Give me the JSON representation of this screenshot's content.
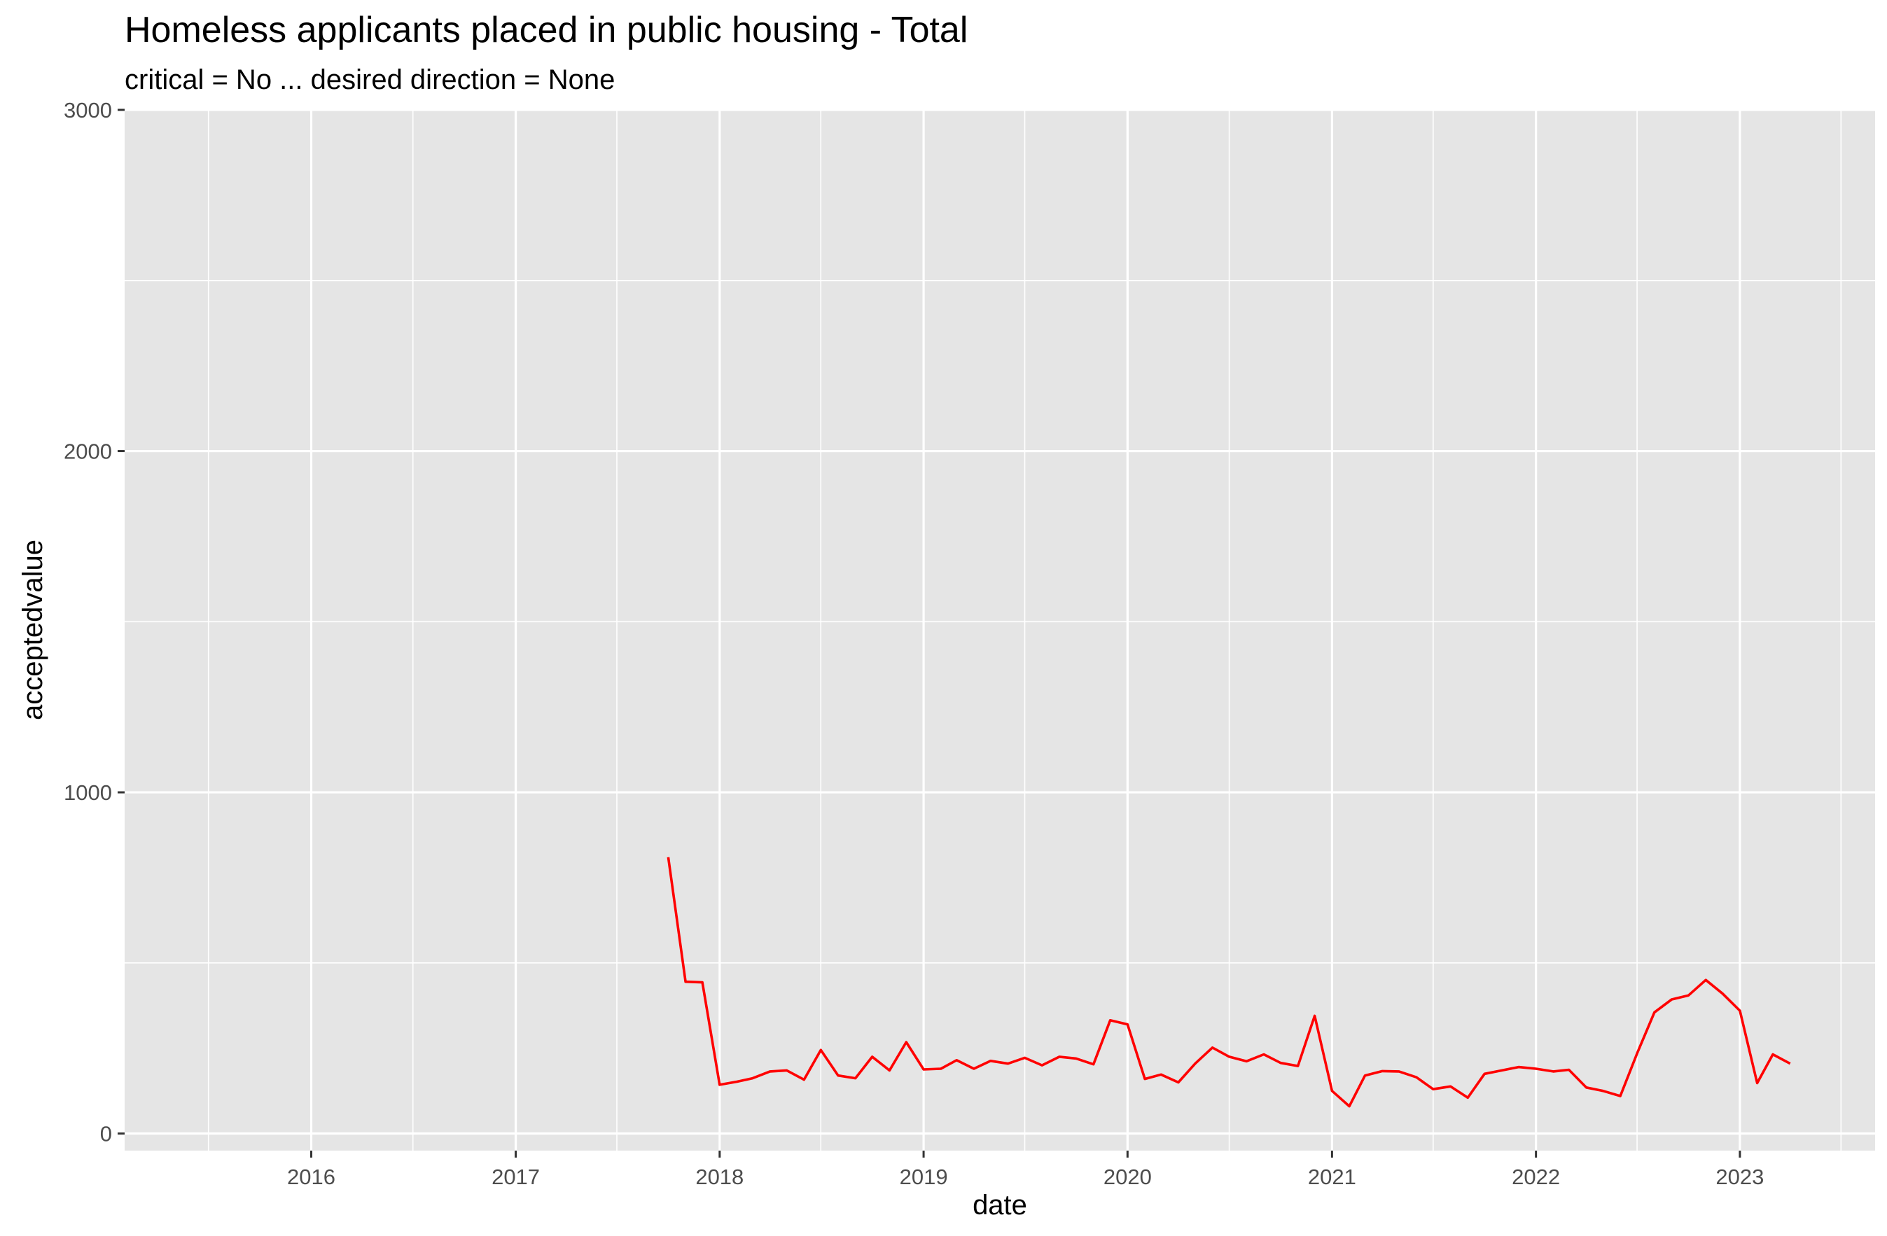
{
  "chart_data": {
    "type": "line",
    "title": "Homeless applicants placed in public housing - Total",
    "subtitle": "critical = No ... desired direction = None",
    "xlabel": "date",
    "ylabel": "acceptedvalue",
    "xlim": [
      "2015-02-01",
      "2023-08-31"
    ],
    "ylim": [
      -50,
      3000
    ],
    "x_ticks": [
      "2016",
      "2017",
      "2018",
      "2019",
      "2020",
      "2021",
      "2022",
      "2023"
    ],
    "y_ticks": [
      0,
      1000,
      2000,
      3000
    ],
    "y_tick_labels": [
      "0",
      "1000",
      "2000",
      "3000"
    ],
    "grid": true,
    "series": [
      {
        "color": "#ff0000",
        "x": [
          "2017-10-01",
          "2017-11-01",
          "2017-12-01",
          "2018-01-01",
          "2018-02-01",
          "2018-03-01",
          "2018-04-01",
          "2018-05-01",
          "2018-06-01",
          "2018-07-01",
          "2018-08-01",
          "2018-09-01",
          "2018-10-01",
          "2018-11-01",
          "2018-12-01",
          "2019-01-01",
          "2019-02-01",
          "2019-03-01",
          "2019-04-01",
          "2019-05-01",
          "2019-06-01",
          "2019-07-01",
          "2019-08-01",
          "2019-09-01",
          "2019-10-01",
          "2019-11-01",
          "2019-12-01",
          "2020-01-01",
          "2020-02-01",
          "2020-03-01",
          "2020-04-01",
          "2020-05-01",
          "2020-06-01",
          "2020-07-01",
          "2020-08-01",
          "2020-09-01",
          "2020-10-01",
          "2020-11-01",
          "2020-12-01",
          "2021-01-01",
          "2021-02-01",
          "2021-03-01",
          "2021-04-01",
          "2021-05-01",
          "2021-06-01",
          "2021-07-01",
          "2021-08-01",
          "2021-09-01",
          "2021-10-01",
          "2021-11-01",
          "2021-12-01",
          "2022-01-01",
          "2022-02-01",
          "2022-03-01",
          "2022-04-01",
          "2022-05-01",
          "2022-06-01",
          "2022-07-01",
          "2022-08-01",
          "2022-09-01",
          "2022-10-01",
          "2022-11-01",
          "2022-12-01",
          "2023-01-01",
          "2023-02-01",
          "2023-03-01",
          "2023-04-01"
        ],
        "values": [
          810,
          445,
          443,
          143,
          152,
          162,
          182,
          185,
          158,
          245,
          170,
          162,
          225,
          185,
          268,
          188,
          190,
          215,
          190,
          213,
          205,
          222,
          200,
          225,
          220,
          203,
          332,
          320,
          160,
          173,
          150,
          205,
          252,
          225,
          212,
          232,
          207,
          198,
          345,
          125,
          80,
          170,
          183,
          182,
          165,
          130,
          138,
          105,
          175,
          185,
          195,
          190,
          182,
          187,
          135,
          125,
          110,
          235,
          355,
          393,
          405,
          450,
          410,
          360,
          148,
          232,
          205
        ]
      }
    ]
  }
}
